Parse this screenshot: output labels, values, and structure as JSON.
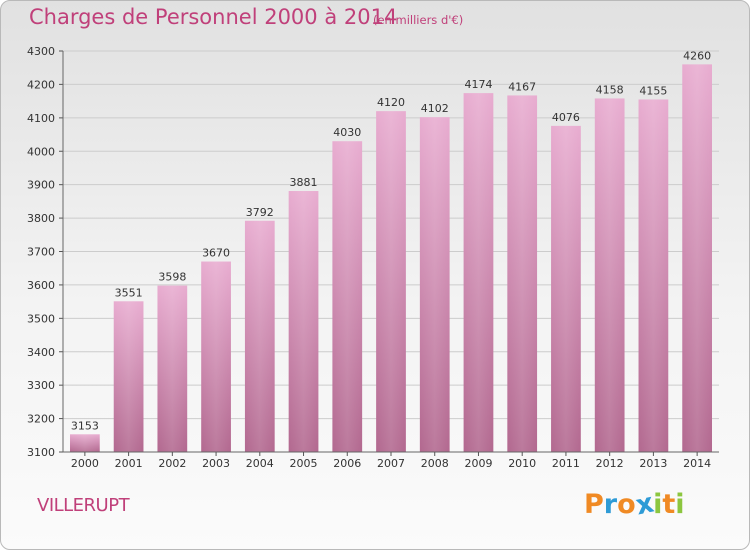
{
  "title": "Charges de Personnel 2000 à 2014",
  "subtitle": "(en milliers d'€)",
  "city": "VILLERUPT",
  "logo": {
    "letters": [
      "P",
      "r",
      "o",
      "x",
      "i",
      "t",
      "i"
    ],
    "colors": [
      "#f08a24",
      "#2e9bd6",
      "#f08a24",
      "#2e9bd6",
      "#8cc63f",
      "#f08a24",
      "#8cc63f"
    ]
  },
  "chart_data": {
    "type": "bar",
    "title": "Charges de Personnel 2000 à 2014",
    "subtitle": "(en milliers d'€)",
    "categories": [
      "2000",
      "2001",
      "2002",
      "2003",
      "2004",
      "2005",
      "2006",
      "2007",
      "2008",
      "2009",
      "2010",
      "2011",
      "2012",
      "2013",
      "2014"
    ],
    "values": [
      3153,
      3551,
      3598,
      3670,
      3792,
      3881,
      4030,
      4120,
      4102,
      4174,
      4167,
      4076,
      4158,
      4155,
      4260
    ],
    "ylim": [
      3100,
      4300
    ],
    "yticks": [
      3100,
      3200,
      3300,
      3400,
      3500,
      3600,
      3700,
      3800,
      3900,
      4000,
      4100,
      4200,
      4300
    ],
    "grid": true,
    "bar_color": "#d17eaa"
  }
}
